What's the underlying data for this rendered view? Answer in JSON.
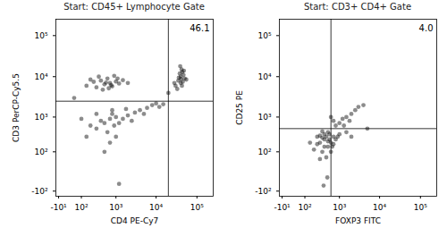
{
  "chart_data": [
    {
      "type": "scatter",
      "title": "Start: CD45+ Lymphocyte Gate",
      "x_label": "CD4 PE-Cy7",
      "y_label": "CD3 PerCP-Cy5.5",
      "log": true,
      "grid": false,
      "color": "#000000",
      "marker": "dot",
      "xlim": [
        -20,
        250000
      ],
      "ylim": [
        -150,
        250000
      ],
      "xticks": [
        {
          "value": -10,
          "label": "-10¹"
        },
        {
          "value": 100,
          "label": "10²"
        },
        {
          "value": 1000,
          "label": "10³"
        },
        {
          "value": 10000,
          "label": "10⁴"
        },
        {
          "value": 100000,
          "label": "10⁵"
        }
      ],
      "yticks": [
        {
          "value": -100,
          "label": "-10²"
        },
        {
          "value": 100,
          "label": "10²"
        },
        {
          "value": 1000,
          "label": "10³"
        },
        {
          "value": 10000,
          "label": "10⁴"
        },
        {
          "value": 100000,
          "label": "10⁵"
        }
      ],
      "quadrant_gate": {
        "x": 20000,
        "y": 2500
      },
      "annotations": [
        "46.1"
      ],
      "x": [
        150,
        250,
        300,
        400,
        500,
        600,
        700,
        800,
        1000,
        1200,
        350,
        900,
        450,
        1500,
        200,
        550,
        750,
        1100,
        650,
        2000,
        30000,
        35000,
        40000,
        45000,
        38000,
        42000,
        50000,
        33000,
        47000,
        40000,
        36000,
        44000,
        55000,
        39000,
        28000,
        43000,
        48000,
        41000,
        300,
        500,
        700,
        900,
        1000,
        600,
        400,
        800,
        1200,
        1500,
        2000,
        3000,
        4000,
        6000,
        8000,
        10000,
        5000,
        2500,
        150,
        200,
        1000,
        700,
        500,
        1200,
        800,
        1800,
        12000,
        15000,
        300,
        100,
        50,
        20000
      ],
      "values": [
        6000,
        7500,
        5500,
        8000,
        6500,
        9000,
        7000,
        5800,
        7600,
        6800,
        10000,
        10500,
        4800,
        8200,
        8500,
        7200,
        6200,
        9000,
        5200,
        7000,
        6000,
        8000,
        10000,
        7500,
        12000,
        15000,
        9000,
        5000,
        11000,
        7000,
        9500,
        13000,
        8500,
        18000,
        7000,
        6000,
        14000,
        8800,
        500,
        700,
        900,
        600,
        1000,
        400,
        800,
        1200,
        700,
        900,
        1100,
        1300,
        1500,
        1700,
        2000,
        2200,
        1200,
        800,
        300,
        600,
        300,
        200,
        100,
        -50,
        1500,
        1600,
        1800,
        2100,
        1200,
        900,
        3000,
        4000
      ]
    },
    {
      "type": "scatter",
      "title": "Start: CD3+ CD4+ Gate",
      "x_label": "FOXP3 FITC",
      "y_label": "CD25 PE",
      "log": true,
      "grid": false,
      "color": "#000000",
      "marker": "dot",
      "xlim": [
        -20,
        250000
      ],
      "ylim": [
        -150,
        250000
      ],
      "xticks": [
        {
          "value": -10,
          "label": "-10¹"
        },
        {
          "value": 100,
          "label": "10²"
        },
        {
          "value": 1000,
          "label": "10³"
        },
        {
          "value": 10000,
          "label": "10⁴"
        },
        {
          "value": 100000,
          "label": "10⁵"
        }
      ],
      "yticks": [
        {
          "value": -100,
          "label": "-10²"
        },
        {
          "value": 100,
          "label": "10²"
        },
        {
          "value": 1000,
          "label": "10³"
        },
        {
          "value": 10000,
          "label": "10⁴"
        },
        {
          "value": 100000,
          "label": "10⁵"
        }
      ],
      "quadrant_gate": {
        "x": 600,
        "y": 500
      },
      "annotations": [
        "4.0"
      ],
      "x": [
        300,
        400,
        500,
        350,
        450,
        550,
        250,
        600,
        400,
        500,
        300,
        700,
        200,
        450,
        350,
        650,
        550,
        400,
        300,
        500,
        800,
        150,
        600,
        700,
        250,
        480,
        380,
        900,
        1000,
        350,
        800,
        1000,
        1200,
        1500,
        2000,
        2500,
        3000,
        1300,
        700,
        4000,
        1800,
        600,
        1500,
        2000,
        5000
      ],
      "values": [
        200,
        250,
        150,
        100,
        300,
        250,
        180,
        200,
        350,
        400,
        50,
        300,
        120,
        60,
        280,
        150,
        350,
        150,
        320,
        220,
        250,
        200,
        100,
        180,
        300,
        -20,
        -60,
        300,
        350,
        420,
        600,
        700,
        900,
        1000,
        1200,
        1500,
        1800,
        600,
        800,
        2000,
        800,
        1000,
        400,
        300,
        500
      ]
    }
  ]
}
